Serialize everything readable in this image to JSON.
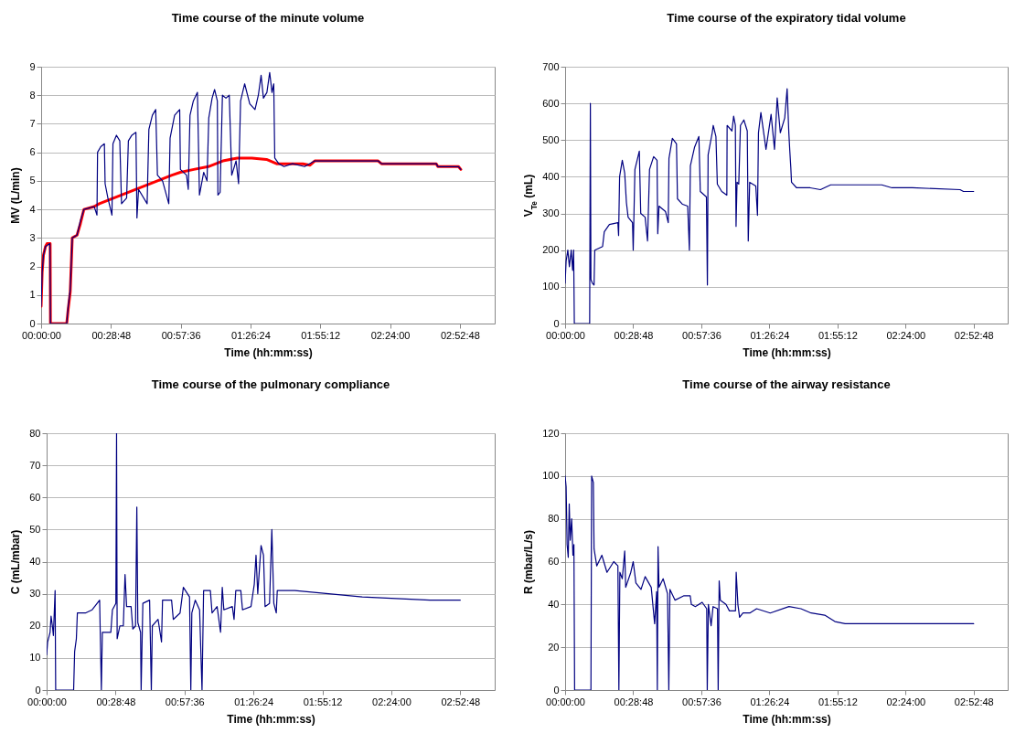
{
  "chart_data": [
    {
      "type": "line",
      "title": "Time course of the minute volume",
      "xlabel": "Time (hh:mm:ss)",
      "ylabel": "MV (L/min)",
      "xlim": [
        0,
        3.12
      ],
      "xticks": [
        {
          "value": 0,
          "label": "00:00:00"
        },
        {
          "value": 0.48,
          "label": "00:28:48"
        },
        {
          "value": 0.96,
          "label": "00:57:36"
        },
        {
          "value": 1.44,
          "label": "01:26:24"
        },
        {
          "value": 1.92,
          "label": "01:55:12"
        },
        {
          "value": 2.4,
          "label": "02:24:00"
        },
        {
          "value": 2.88,
          "label": "02:52:48"
        }
      ],
      "ylim": [
        0,
        9
      ],
      "yticks": [
        0,
        1,
        2,
        3,
        4,
        5,
        6,
        7,
        8,
        9
      ],
      "grid": "y",
      "line_style": "solid",
      "series": [
        {
          "color": "#000080",
          "x": [
            0,
            0.007,
            0.016,
            0.03,
            0.06,
            0.064,
            0.176,
            0.186,
            0.2,
            0.214,
            0.247,
            0.27,
            0.294,
            0.365,
            0.384,
            0.388,
            0.41,
            0.435,
            0.44,
            0.459,
            0.487,
            0.494,
            0.518,
            0.541,
            0.553,
            0.588,
            0.6,
            0.624,
            0.652,
            0.659,
            0.67,
            0.729,
            0.741,
            0.765,
            0.788,
            0.8,
            0.835,
            0.878,
            0.887,
            0.918,
            0.953,
            0.958,
            1.0,
            1.012,
            1.024,
            1.047,
            1.075,
            1.089,
            1.118,
            1.141,
            1.153,
            1.176,
            1.193,
            1.212,
            1.216,
            1.231,
            1.247,
            1.271,
            1.294,
            1.311,
            1.341,
            1.358,
            1.372,
            1.4,
            1.435,
            1.471,
            1.494,
            1.513,
            1.529,
            1.553,
            1.572,
            1.588,
            1.6,
            1.607,
            1.635,
            1.671,
            1.729,
            1.812,
            1.882,
            2.318,
            2.341,
            2.718,
            2.729,
            2.871,
            2.887
          ],
          "values": [
            0.6,
            1.8,
            2.4,
            2.7,
            2.8,
            0,
            0,
            0.6,
            1.2,
            3.0,
            3.1,
            3.6,
            4.0,
            4.1,
            3.8,
            6.0,
            6.2,
            6.3,
            4.9,
            4.4,
            3.8,
            6.3,
            6.6,
            6.4,
            4.2,
            4.4,
            6.4,
            6.6,
            6.7,
            3.7,
            4.7,
            4.2,
            6.8,
            7.3,
            7.5,
            5.2,
            5.0,
            4.2,
            6.5,
            7.3,
            7.5,
            5.4,
            5.2,
            4.7,
            7.3,
            7.8,
            8.1,
            4.5,
            5.3,
            5.0,
            7.2,
            7.9,
            8.2,
            7.8,
            4.5,
            4.6,
            8.0,
            7.9,
            8.0,
            5.2,
            5.7,
            4.9,
            7.8,
            8.4,
            7.7,
            7.5,
            8.0,
            8.7,
            7.9,
            8.1,
            8.8,
            8.1,
            8.4,
            5.8,
            5.6,
            5.5,
            5.6,
            5.5,
            5.7,
            5.7,
            5.6,
            5.6,
            5.5,
            5.5,
            5.4
          ]
        },
        {
          "color": "#ff0000",
          "x": [
            0,
            0.007,
            0.016,
            0.03,
            0.04,
            0.062,
            0.064,
            0.176,
            0.186,
            0.2,
            0.214,
            0.247,
            0.27,
            0.294,
            0.365,
            0.4,
            0.5,
            0.6,
            0.7,
            0.8,
            0.9,
            0.958,
            1.05,
            1.15,
            1.25,
            1.35,
            1.45,
            1.55,
            1.62,
            1.8,
            1.85,
            1.882,
            2.318,
            2.341,
            2.718,
            2.729,
            2.871,
            2.887
          ],
          "values": [
            0.6,
            1.8,
            2.4,
            2.7,
            2.8,
            2.8,
            0,
            0,
            0.5,
            1.1,
            3.0,
            3.1,
            3.5,
            4.0,
            4.1,
            4.2,
            4.4,
            4.6,
            4.8,
            5.0,
            5.2,
            5.3,
            5.4,
            5.5,
            5.7,
            5.8,
            5.8,
            5.75,
            5.6,
            5.6,
            5.55,
            5.7,
            5.7,
            5.6,
            5.6,
            5.5,
            5.5,
            5.4
          ]
        }
      ]
    },
    {
      "type": "line",
      "title": "Time course of the expiratory tidal volume",
      "xlabel": "Time (hh:mm:ss)",
      "ylabel": "V$_{Te}$ (mL)",
      "xlim": [
        0,
        3.12
      ],
      "xticks": [
        {
          "value": 0,
          "label": "00:00:00"
        },
        {
          "value": 0.48,
          "label": "00:28:48"
        },
        {
          "value": 0.96,
          "label": "00:57:36"
        },
        {
          "value": 1.44,
          "label": "01:26:24"
        },
        {
          "value": 1.92,
          "label": "01:55:12"
        },
        {
          "value": 2.4,
          "label": "02:24:00"
        },
        {
          "value": 2.88,
          "label": "02:52:48"
        }
      ],
      "ylim": [
        0,
        700
      ],
      "yticks": [
        0,
        100,
        200,
        300,
        400,
        500,
        600,
        700
      ],
      "grid": "y",
      "line_style": "solid",
      "series": [
        {
          "color": "#000080",
          "x": [
            0,
            0.007,
            0.019,
            0.03,
            0.043,
            0.053,
            0.06,
            0.065,
            0.173,
            0.178,
            0.182,
            0.192,
            0.204,
            0.209,
            0.264,
            0.276,
            0.312,
            0.372,
            0.377,
            0.384,
            0.403,
            0.42,
            0.432,
            0.444,
            0.475,
            0.48,
            0.492,
            0.523,
            0.533,
            0.564,
            0.581,
            0.595,
            0.624,
            0.648,
            0.653,
            0.662,
            0.708,
            0.727,
            0.732,
            0.756,
            0.785,
            0.792,
            0.828,
            0.864,
            0.876,
            0.883,
            0.912,
            0.943,
            0.953,
            0.996,
            1.003,
            1.008,
            1.037,
            1.044,
            1.063,
            1.073,
            1.104,
            1.14,
            1.142,
            1.176,
            1.188,
            1.2,
            1.205,
            1.212,
            1.224,
            1.236,
            1.26,
            1.284,
            1.291,
            1.301,
            1.344,
            1.356,
            1.363,
            1.38,
            1.416,
            1.452,
            1.476,
            1.495,
            1.517,
            1.548,
            1.565,
            1.577,
            1.584,
            1.591,
            1.596,
            1.632,
            1.728,
            1.8,
            1.872,
            2.088,
            2.232,
            2.304,
            2.448,
            2.784,
            2.808,
            2.88
          ],
          "values": [
            110,
            170,
            200,
            155,
            200,
            145,
            200,
            0,
            0,
            600,
            120,
            110,
            105,
            200,
            210,
            250,
            270,
            275,
            240,
            400,
            445,
            410,
            330,
            290,
            275,
            200,
            420,
            470,
            300,
            290,
            225,
            420,
            455,
            445,
            245,
            320,
            305,
            275,
            450,
            505,
            490,
            340,
            325,
            320,
            200,
            430,
            480,
            510,
            360,
            345,
            105,
            460,
            520,
            540,
            510,
            380,
            360,
            350,
            540,
            525,
            565,
            540,
            265,
            385,
            380,
            540,
            555,
            525,
            225,
            385,
            375,
            295,
            520,
            575,
            475,
            570,
            475,
            615,
            520,
            560,
            640,
            520,
            470,
            425,
            385,
            370,
            370,
            365,
            378,
            378,
            378,
            370,
            370,
            365,
            360,
            360
          ]
        }
      ]
    },
    {
      "type": "line",
      "title": "Time course of the pulmonary compliance",
      "xlabel": "Time (hh:mm:ss)",
      "ylabel": "C (mL/mbar)",
      "xlim": [
        0,
        3.12
      ],
      "xticks": [
        {
          "value": 0,
          "label": "00:00:00"
        },
        {
          "value": 0.48,
          "label": "00:28:48"
        },
        {
          "value": 0.96,
          "label": "00:57:36"
        },
        {
          "value": 1.44,
          "label": "01:26:24"
        },
        {
          "value": 1.92,
          "label": "01:55:12"
        },
        {
          "value": 2.4,
          "label": "02:24:00"
        },
        {
          "value": 2.88,
          "label": "02:52:48"
        }
      ],
      "ylim": [
        0,
        80
      ],
      "yticks": [
        0,
        10,
        20,
        30,
        40,
        50,
        60,
        70,
        80
      ],
      "grid": "y",
      "line_style": "solid",
      "series": [
        {
          "color": "#000080",
          "x": [
            0,
            0.007,
            0.024,
            0.031,
            0.04,
            0.047,
            0.059,
            0.063,
            0.188,
            0.195,
            0.207,
            0.214,
            0.27,
            0.317,
            0.369,
            0.381,
            0.388,
            0.447,
            0.458,
            0.482,
            0.487,
            0.491,
            0.51,
            0.534,
            0.546,
            0.557,
            0.588,
            0.6,
            0.619,
            0.628,
            0.635,
            0.654,
            0.658,
            0.67,
            0.717,
            0.729,
            0.736,
            0.776,
            0.8,
            0.807,
            0.87,
            0.882,
            0.929,
            0.952,
            0.995,
            1.004,
            1.011,
            1.035,
            1.065,
            1.082,
            1.093,
            1.14,
            1.152,
            1.187,
            1.211,
            1.223,
            1.234,
            1.293,
            1.305,
            1.317,
            1.352,
            1.364,
            1.423,
            1.446,
            1.458,
            1.47,
            1.493,
            1.51,
            1.521,
            1.552,
            1.568,
            1.582,
            1.599,
            1.606,
            1.728,
            1.963,
            2.198,
            2.434,
            2.669,
            2.88
          ],
          "values": [
            11,
            15,
            18,
            23,
            20,
            17,
            31,
            0,
            0,
            12,
            16,
            24,
            24,
            25,
            28,
            0,
            18,
            18,
            25,
            27,
            80,
            16,
            20,
            20,
            36,
            26,
            26,
            19,
            20,
            57,
            21,
            18,
            0,
            27,
            28,
            0,
            20,
            22,
            15,
            28,
            28,
            22,
            24,
            32,
            29,
            0,
            24,
            28,
            25,
            0,
            31,
            31,
            24,
            26,
            18,
            32,
            25,
            26,
            22,
            31,
            31,
            25,
            26,
            33,
            42,
            30,
            45,
            42,
            26,
            27,
            50,
            27,
            24,
            31,
            31,
            30,
            29,
            28.5,
            28,
            28
          ]
        }
      ]
    },
    {
      "type": "line",
      "title": "Time course of the airway resistance",
      "xlabel": "Time (hh:mm:ss)",
      "ylabel": "R (mbar/L/s)",
      "xlim": [
        0,
        3.12
      ],
      "xticks": [
        {
          "value": 0,
          "label": "00:00:00"
        },
        {
          "value": 0.48,
          "label": "00:28:48"
        },
        {
          "value": 0.96,
          "label": "00:57:36"
        },
        {
          "value": 1.44,
          "label": "01:26:24"
        },
        {
          "value": 1.92,
          "label": "01:55:12"
        },
        {
          "value": 2.4,
          "label": "02:24:00"
        },
        {
          "value": 2.88,
          "label": "02:52:48"
        }
      ],
      "ylim": [
        0,
        120
      ],
      "yticks": [
        0,
        20,
        40,
        60,
        80,
        100,
        120
      ],
      "grid": "y",
      "line_style": "solid",
      "series": [
        {
          "color": "#000080",
          "x": [
            0,
            0.007,
            0.014,
            0.022,
            0.029,
            0.036,
            0.046,
            0.055,
            0.062,
            0.067,
            0.182,
            0.187,
            0.199,
            0.204,
            0.223,
            0.259,
            0.295,
            0.343,
            0.372,
            0.379,
            0.386,
            0.403,
            0.42,
            0.427,
            0.463,
            0.48,
            0.499,
            0.535,
            0.564,
            0.607,
            0.631,
            0.645,
            0.65,
            0.655,
            0.662,
            0.691,
            0.722,
            0.731,
            0.739,
            0.775,
            0.835,
            0.882,
            0.89,
            0.918,
            0.966,
            0.998,
            1.002,
            1.01,
            1.029,
            1.043,
            1.074,
            1.079,
            1.086,
            1.094,
            1.134,
            1.158,
            1.201,
            1.206,
            1.218,
            1.23,
            1.254,
            1.302,
            1.35,
            1.446,
            1.578,
            1.662,
            1.734,
            1.83,
            1.902,
            1.974,
            2.213,
            2.453,
            2.693,
            2.88
          ],
          "values": [
            100,
            95,
            68,
            62,
            87,
            70,
            80,
            63,
            68,
            0,
            0,
            100,
            97,
            66,
            58,
            63,
            55,
            60,
            58,
            0,
            55,
            52,
            65,
            48,
            55,
            60,
            50,
            47,
            53,
            48,
            31,
            46,
            0,
            67,
            48,
            52,
            45,
            0,
            47,
            42,
            44,
            44,
            40,
            39,
            41,
            38,
            0,
            40,
            30,
            39,
            38,
            0,
            51,
            42,
            40,
            37,
            37,
            55,
            40,
            34,
            36,
            36,
            38,
            36,
            39,
            38,
            36,
            35,
            32,
            31,
            31,
            31,
            31,
            31
          ]
        }
      ]
    }
  ]
}
